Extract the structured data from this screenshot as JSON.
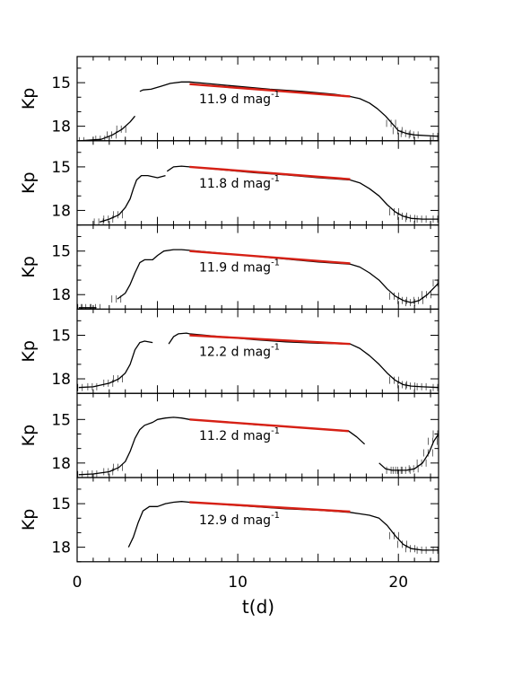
{
  "chart_data": {
    "type": "line",
    "layout": "stacked-panels",
    "xlabel": "t(d)",
    "xlim": [
      0,
      22.5
    ],
    "x_ticks": [
      0,
      10,
      20
    ],
    "colors": {
      "data": "#000000",
      "fit": "#d62015",
      "frame": "#000000"
    },
    "panels": [
      {
        "ylabel": "Kp",
        "ylim": [
          19.0,
          13.2
        ],
        "y_ticks": [
          15,
          18
        ],
        "annotation": {
          "value": "11.9 d mag",
          "exponent": "-1"
        },
        "fit": {
          "x": [
            7.0,
            17.0
          ],
          "y": [
            15.1,
            15.95
          ]
        },
        "series": [
          {
            "x": [
              0.2,
              1.5,
              2.2,
              2.8,
              3.3,
              3.6
            ],
            "y": [
              19.0,
              18.9,
              18.6,
              18.2,
              17.7,
              17.3
            ]
          },
          {
            "x": [
              3.9,
              4.1,
              4.6,
              5.2,
              5.8,
              6.5,
              7.0,
              8,
              10,
              12,
              14,
              16,
              17.0,
              17.6,
              18.2,
              18.7,
              19.2,
              19.6,
              20.0,
              20.5,
              21,
              22.5
            ],
            "y": [
              15.6,
              15.5,
              15.45,
              15.25,
              15.05,
              14.95,
              14.95,
              15.05,
              15.25,
              15.45,
              15.6,
              15.8,
              15.95,
              16.1,
              16.4,
              16.8,
              17.3,
              17.8,
              18.3,
              18.5,
              18.6,
              18.7
            ]
          }
        ]
      },
      {
        "ylabel": "Kp",
        "ylim": [
          19.0,
          13.2
        ],
        "y_ticks": [
          15,
          18
        ],
        "annotation": {
          "value": "11.8 d mag",
          "exponent": "-1"
        },
        "fit": {
          "x": [
            7.0,
            17.0
          ],
          "y": [
            15.0,
            15.85
          ]
        },
        "series": [
          {
            "x": [
              1.4,
              2.0,
              2.6,
              3.0,
              3.3,
              3.5,
              3.7,
              4.0,
              4.4,
              5.0,
              5.5
            ],
            "y": [
              18.8,
              18.6,
              18.3,
              17.8,
              17.2,
              16.5,
              15.9,
              15.6,
              15.6,
              15.75,
              15.6
            ]
          },
          {
            "x": [
              5.6,
              6.0,
              6.5,
              7.0,
              9,
              11,
              13,
              15,
              17.0,
              17.6,
              18.2,
              18.8,
              19.3,
              19.8,
              20.3,
              20.8,
              21.5,
              22.5
            ],
            "y": [
              15.3,
              15.0,
              14.95,
              15.0,
              15.2,
              15.4,
              15.55,
              15.75,
              15.9,
              16.1,
              16.5,
              17.0,
              17.6,
              18.1,
              18.4,
              18.55,
              18.6,
              18.6
            ]
          }
        ]
      },
      {
        "ylabel": "Kp",
        "ylim": [
          19.0,
          13.2
        ],
        "y_ticks": [
          15,
          18
        ],
        "annotation": {
          "value": "11.9 d mag",
          "exponent": "-1"
        },
        "fit": {
          "x": [
            7.0,
            17.0
          ],
          "y": [
            15.0,
            15.85
          ]
        },
        "series": [
          {
            "x": [
              0.1,
              0.6,
              1.2
            ],
            "y": [
              18.9,
              18.9,
              18.9
            ]
          },
          {
            "x": [
              2.5,
              3.0,
              3.3,
              3.6,
              3.9,
              4.2,
              4.7,
              5.0,
              5.4,
              6.0,
              6.5,
              7.0,
              9,
              11,
              13,
              15,
              17.0,
              17.6,
              18.2,
              18.8,
              19.3,
              19.8,
              20.3,
              20.8,
              21.3,
              21.8,
              22.5
            ],
            "y": [
              18.3,
              17.9,
              17.3,
              16.5,
              15.8,
              15.6,
              15.6,
              15.3,
              15.0,
              14.9,
              14.9,
              14.95,
              15.15,
              15.35,
              15.55,
              15.75,
              15.9,
              16.1,
              16.5,
              17.0,
              17.6,
              18.1,
              18.4,
              18.55,
              18.4,
              18.0,
              17.2
            ]
          }
        ]
      },
      {
        "ylabel": "Kp",
        "ylim": [
          19.0,
          13.2
        ],
        "y_ticks": [
          15,
          18
        ],
        "annotation": {
          "value": "12.2 d mag",
          "exponent": "-1"
        },
        "fit": {
          "x": [
            7.0,
            17.0
          ],
          "y": [
            15.0,
            15.6
          ]
        },
        "series": [
          {
            "x": [
              0.1,
              1.0,
              2.0,
              2.6,
              3.0,
              3.3,
              3.6,
              3.9,
              4.2,
              4.7
            ],
            "y": [
              18.6,
              18.55,
              18.3,
              18.0,
              17.6,
              17.0,
              16.0,
              15.5,
              15.4,
              15.5
            ]
          },
          {
            "x": [
              5.7,
              6.0,
              6.3,
              6.8,
              7.0,
              9,
              11,
              13,
              15,
              17.0,
              17.6,
              18.2,
              18.8,
              19.3,
              19.8,
              20.3,
              20.8,
              21.5,
              22.5
            ],
            "y": [
              15.6,
              15.1,
              14.9,
              14.85,
              14.9,
              15.1,
              15.3,
              15.45,
              15.55,
              15.6,
              15.9,
              16.4,
              17.0,
              17.6,
              18.1,
              18.4,
              18.5,
              18.55,
              18.6
            ]
          }
        ]
      },
      {
        "ylabel": "Kp",
        "ylim": [
          19.0,
          13.2
        ],
        "y_ticks": [
          15,
          18
        ],
        "annotation": {
          "value": "11.2 d mag",
          "exponent": "-1"
        },
        "fit": {
          "x": [
            7.0,
            16.9
          ],
          "y": [
            15.0,
            15.8
          ]
        },
        "series": [
          {
            "x": [
              0.1,
              1.0,
              2.0,
              2.6,
              3.0,
              3.3,
              3.6,
              3.9,
              4.2,
              4.7,
              5.0,
              5.5,
              6.0,
              6.5,
              7.0,
              9,
              11,
              13,
              15,
              16.9,
              17.4,
              17.9
            ],
            "y": [
              18.8,
              18.75,
              18.6,
              18.3,
              17.9,
              17.2,
              16.3,
              15.7,
              15.4,
              15.2,
              15.0,
              14.9,
              14.85,
              14.9,
              15.0,
              15.15,
              15.35,
              15.5,
              15.65,
              15.8,
              16.2,
              16.7
            ]
          },
          {
            "x": [
              18.8,
              19.2,
              19.6,
              20.0,
              20.5,
              21.0,
              21.5,
              21.9,
              22.2,
              22.5
            ],
            "y": [
              18.0,
              18.4,
              18.5,
              18.5,
              18.5,
              18.4,
              18.0,
              17.3,
              16.5,
              16.0
            ]
          }
        ]
      },
      {
        "ylabel": "Kp",
        "ylim": [
          19.0,
          13.2
        ],
        "y_ticks": [
          15,
          18
        ],
        "annotation": {
          "value": "12.9 d mag",
          "exponent": "-1"
        },
        "fit": {
          "x": [
            7.0,
            17.0
          ],
          "y": [
            14.9,
            15.55
          ]
        },
        "series": [
          {
            "x": [
              3.2,
              3.5,
              3.8,
              4.1,
              4.5,
              5.0,
              5.5,
              6.0,
              6.5,
              7.0,
              9,
              11,
              13,
              15,
              17.0,
              17.6,
              18.2,
              18.8,
              19.3,
              19.8,
              20.3,
              20.8,
              21.5,
              22.5
            ],
            "y": [
              18.0,
              17.3,
              16.3,
              15.5,
              15.2,
              15.2,
              15.0,
              14.9,
              14.85,
              14.9,
              15.05,
              15.2,
              15.35,
              15.45,
              15.6,
              15.7,
              15.8,
              16.0,
              16.5,
              17.2,
              17.8,
              18.1,
              18.2,
              18.2
            ]
          }
        ]
      }
    ]
  }
}
